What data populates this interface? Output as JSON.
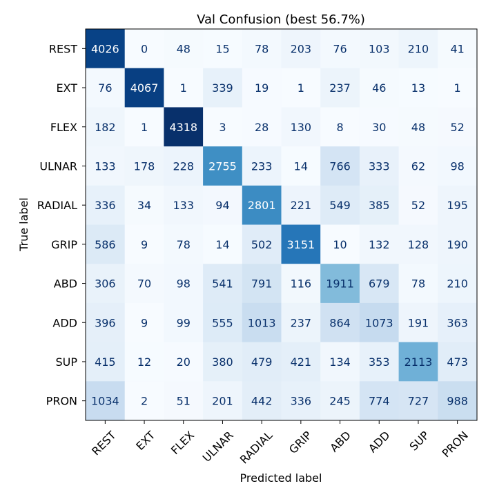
{
  "chart_data": {
    "type": "heatmap",
    "title": "Val Confusion (best 56.7%)",
    "xlabel": "Predicted label",
    "ylabel": "True label",
    "x_labels": [
      "REST",
      "EXT",
      "FLEX",
      "ULNAR",
      "RADIAL",
      "GRIP",
      "ABD",
      "ADD",
      "SUP",
      "PRON"
    ],
    "y_labels": [
      "REST",
      "EXT",
      "FLEX",
      "ULNAR",
      "RADIAL",
      "GRIP",
      "ABD",
      "ADD",
      "SUP",
      "PRON"
    ],
    "values": [
      [
        4026,
        0,
        48,
        15,
        78,
        203,
        76,
        103,
        210,
        41
      ],
      [
        76,
        4067,
        1,
        339,
        19,
        1,
        237,
        46,
        13,
        1
      ],
      [
        182,
        1,
        4318,
        3,
        28,
        130,
        8,
        30,
        48,
        52
      ],
      [
        133,
        178,
        228,
        2755,
        233,
        14,
        766,
        333,
        62,
        98
      ],
      [
        336,
        34,
        133,
        94,
        2801,
        221,
        549,
        385,
        52,
        195
      ],
      [
        586,
        9,
        78,
        14,
        502,
        3151,
        10,
        132,
        128,
        190
      ],
      [
        306,
        70,
        98,
        541,
        791,
        116,
        1911,
        679,
        78,
        210
      ],
      [
        396,
        9,
        99,
        555,
        1013,
        237,
        864,
        1073,
        191,
        363
      ],
      [
        415,
        12,
        20,
        380,
        479,
        421,
        134,
        353,
        2113,
        473
      ],
      [
        1034,
        2,
        51,
        201,
        442,
        336,
        245,
        774,
        727,
        988
      ]
    ],
    "colormap": "Blues",
    "value_range": [
      0,
      4318
    ],
    "text_color_light": "#ffffff",
    "text_color_dark": "#08306b",
    "grid": false
  }
}
